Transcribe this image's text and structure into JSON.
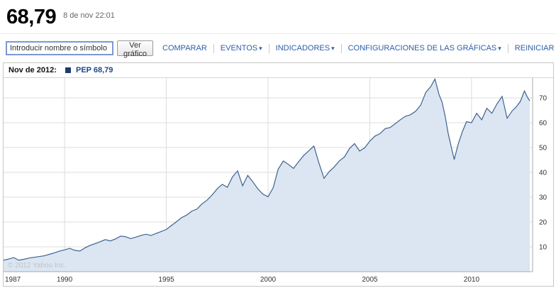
{
  "header": {
    "price": "68,79",
    "timestamp": "8 de nov 22:01"
  },
  "toolbar": {
    "input_placeholder": "Introducir nombre o símbolo",
    "draw_button": "Ver gráfico",
    "links": [
      {
        "label": "COMPARAR",
        "dropdown": false
      },
      {
        "label": "EVENTOS",
        "dropdown": true
      },
      {
        "label": "INDICADORES",
        "dropdown": true
      },
      {
        "label": "CONFIGURACIONES DE LAS GRÁFICAS",
        "dropdown": true
      },
      {
        "label": "REINICIAR",
        "dropdown": false
      }
    ]
  },
  "icons": {
    "dropdown_arrow": "▾"
  },
  "chart": {
    "period_label": "Nov de 2012:",
    "series_label": "PEP 68,79",
    "swatch_color": "#1b3d6d"
  },
  "chart_data": {
    "type": "area",
    "title": "PEP stock price history",
    "series": [
      {
        "name": "PEP",
        "points": [
          [
            1987.0,
            4.6
          ],
          [
            1987.25,
            5.1
          ],
          [
            1987.5,
            5.7
          ],
          [
            1987.75,
            4.6
          ],
          [
            1988.0,
            5.0
          ],
          [
            1988.25,
            5.5
          ],
          [
            1988.5,
            5.8
          ],
          [
            1988.75,
            6.1
          ],
          [
            1989.0,
            6.4
          ],
          [
            1989.25,
            7.0
          ],
          [
            1989.5,
            7.6
          ],
          [
            1989.75,
            8.3
          ],
          [
            1990.0,
            8.8
          ],
          [
            1990.25,
            9.4
          ],
          [
            1990.5,
            8.6
          ],
          [
            1990.75,
            8.3
          ],
          [
            1991.0,
            9.6
          ],
          [
            1991.25,
            10.6
          ],
          [
            1991.5,
            11.3
          ],
          [
            1991.75,
            12.1
          ],
          [
            1992.0,
            12.9
          ],
          [
            1992.25,
            12.4
          ],
          [
            1992.5,
            13.2
          ],
          [
            1992.75,
            14.3
          ],
          [
            1993.0,
            14.1
          ],
          [
            1993.25,
            13.3
          ],
          [
            1993.5,
            13.9
          ],
          [
            1993.75,
            14.6
          ],
          [
            1994.0,
            15.1
          ],
          [
            1994.25,
            14.6
          ],
          [
            1994.5,
            15.4
          ],
          [
            1994.75,
            16.2
          ],
          [
            1995.0,
            17.0
          ],
          [
            1995.25,
            18.6
          ],
          [
            1995.5,
            20.1
          ],
          [
            1995.75,
            21.8
          ],
          [
            1996.0,
            22.8
          ],
          [
            1996.25,
            24.4
          ],
          [
            1996.5,
            25.2
          ],
          [
            1996.75,
            27.3
          ],
          [
            1997.0,
            28.8
          ],
          [
            1997.25,
            30.9
          ],
          [
            1997.5,
            33.4
          ],
          [
            1997.75,
            35.2
          ],
          [
            1998.0,
            34.0
          ],
          [
            1998.25,
            38.2
          ],
          [
            1998.5,
            40.6
          ],
          [
            1998.75,
            34.6
          ],
          [
            1999.0,
            38.8
          ],
          [
            1999.25,
            36.2
          ],
          [
            1999.5,
            33.3
          ],
          [
            1999.75,
            31.2
          ],
          [
            2000.0,
            30.2
          ],
          [
            2000.25,
            33.8
          ],
          [
            2000.5,
            41.3
          ],
          [
            2000.75,
            44.6
          ],
          [
            2001.0,
            43.2
          ],
          [
            2001.25,
            41.6
          ],
          [
            2001.5,
            44.3
          ],
          [
            2001.75,
            46.8
          ],
          [
            2002.0,
            48.7
          ],
          [
            2002.25,
            50.6
          ],
          [
            2002.5,
            43.8
          ],
          [
            2002.75,
            37.6
          ],
          [
            2003.0,
            40.3
          ],
          [
            2003.25,
            42.2
          ],
          [
            2003.5,
            44.6
          ],
          [
            2003.75,
            46.2
          ],
          [
            2004.0,
            49.6
          ],
          [
            2004.25,
            51.6
          ],
          [
            2004.5,
            48.6
          ],
          [
            2004.75,
            49.9
          ],
          [
            2005.0,
            52.6
          ],
          [
            2005.25,
            54.6
          ],
          [
            2005.5,
            55.6
          ],
          [
            2005.75,
            57.6
          ],
          [
            2006.0,
            58.1
          ],
          [
            2006.25,
            59.6
          ],
          [
            2006.5,
            61.2
          ],
          [
            2006.75,
            62.6
          ],
          [
            2007.0,
            63.2
          ],
          [
            2007.25,
            64.6
          ],
          [
            2007.5,
            67.1
          ],
          [
            2007.75,
            72.2
          ],
          [
            2008.0,
            74.6
          ],
          [
            2008.2,
            77.6
          ],
          [
            2008.4,
            71.4
          ],
          [
            2008.55,
            68.3
          ],
          [
            2008.7,
            62.8
          ],
          [
            2008.85,
            55.8
          ],
          [
            2009.0,
            50.4
          ],
          [
            2009.15,
            45.2
          ],
          [
            2009.35,
            51.6
          ],
          [
            2009.55,
            56.4
          ],
          [
            2009.75,
            60.4
          ],
          [
            2010.0,
            60.0
          ],
          [
            2010.25,
            63.8
          ],
          [
            2010.5,
            61.2
          ],
          [
            2010.75,
            65.8
          ],
          [
            2011.0,
            63.8
          ],
          [
            2011.25,
            67.6
          ],
          [
            2011.5,
            70.6
          ],
          [
            2011.75,
            61.8
          ],
          [
            2012.0,
            64.8
          ],
          [
            2012.2,
            66.4
          ],
          [
            2012.4,
            68.6
          ],
          [
            2012.6,
            72.8
          ],
          [
            2012.75,
            70.2
          ],
          [
            2012.86,
            68.79
          ]
        ]
      }
    ],
    "x_ticks": [
      1987,
      1990,
      1995,
      2000,
      2005,
      2010
    ],
    "y_ticks": [
      10,
      20,
      30,
      40,
      50,
      60,
      70
    ],
    "xlim": [
      1987,
      2013
    ],
    "ylim": [
      0,
      78
    ],
    "xlabel": "",
    "ylabel": "",
    "grid": true,
    "legend_position": "top-left",
    "line_color": "#3e628f",
    "fill_color": "#dbe6f2",
    "grid_color": "#dcdcdc",
    "axis_color": "#aaaaaa",
    "tick_text_color": "#333333",
    "watermark": "© 2012 Yahoo Inc."
  }
}
